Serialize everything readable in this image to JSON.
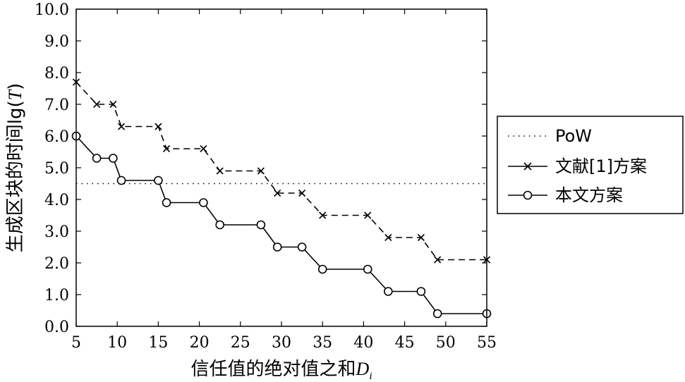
{
  "chart_data": {
    "type": "line",
    "xlabel_prefix": "信任值的绝对值之和",
    "xlabel_var": "D",
    "xlabel_sub": "i",
    "ylabel_prefix": "生成区块的时间lg(",
    "ylabel_var": "T",
    "ylabel_suffix": ")",
    "xlim": [
      5,
      55
    ],
    "ylim": [
      0,
      10
    ],
    "xticks": [
      "5",
      "10",
      "15",
      "20",
      "25",
      "30",
      "35",
      "40",
      "45",
      "50",
      "55"
    ],
    "yticks": [
      "0.0",
      "1.0",
      "2.0",
      "3.0",
      "4.0",
      "5.0",
      "6.0",
      "7.0",
      "8.0",
      "9.0",
      "10.0"
    ],
    "grid": false,
    "legend_position": "right-outside",
    "series": [
      {
        "name": "PoW",
        "style": "dotted",
        "marker": "none",
        "points": [
          [
            5,
            4.5
          ],
          [
            55,
            4.5
          ]
        ]
      },
      {
        "name": "文献[1]方案",
        "style": "dashed",
        "marker": "x",
        "points": [
          [
            5,
            7.7
          ],
          [
            7.5,
            7.0
          ],
          [
            9.5,
            7.0
          ],
          [
            10.5,
            6.3
          ],
          [
            15,
            6.3
          ],
          [
            16,
            5.6
          ],
          [
            20.5,
            5.6
          ],
          [
            22.5,
            4.9
          ],
          [
            27.5,
            4.9
          ],
          [
            29.5,
            4.2
          ],
          [
            32.5,
            4.2
          ],
          [
            35,
            3.5
          ],
          [
            40.5,
            3.5
          ],
          [
            43,
            2.8
          ],
          [
            47,
            2.8
          ],
          [
            49,
            2.1
          ],
          [
            55,
            2.1
          ]
        ]
      },
      {
        "name": "本文方案",
        "style": "solid",
        "marker": "circle",
        "points": [
          [
            5,
            6.0
          ],
          [
            7.5,
            5.3
          ],
          [
            9.5,
            5.3
          ],
          [
            10.5,
            4.6
          ],
          [
            15,
            4.6
          ],
          [
            16,
            3.9
          ],
          [
            20.5,
            3.9
          ],
          [
            22.5,
            3.2
          ],
          [
            27.5,
            3.2
          ],
          [
            29.5,
            2.5
          ],
          [
            32.5,
            2.5
          ],
          [
            35,
            1.8
          ],
          [
            40.5,
            1.8
          ],
          [
            43,
            1.1
          ],
          [
            47,
            1.1
          ],
          [
            49,
            0.4
          ],
          [
            55,
            0.4
          ]
        ]
      }
    ]
  }
}
